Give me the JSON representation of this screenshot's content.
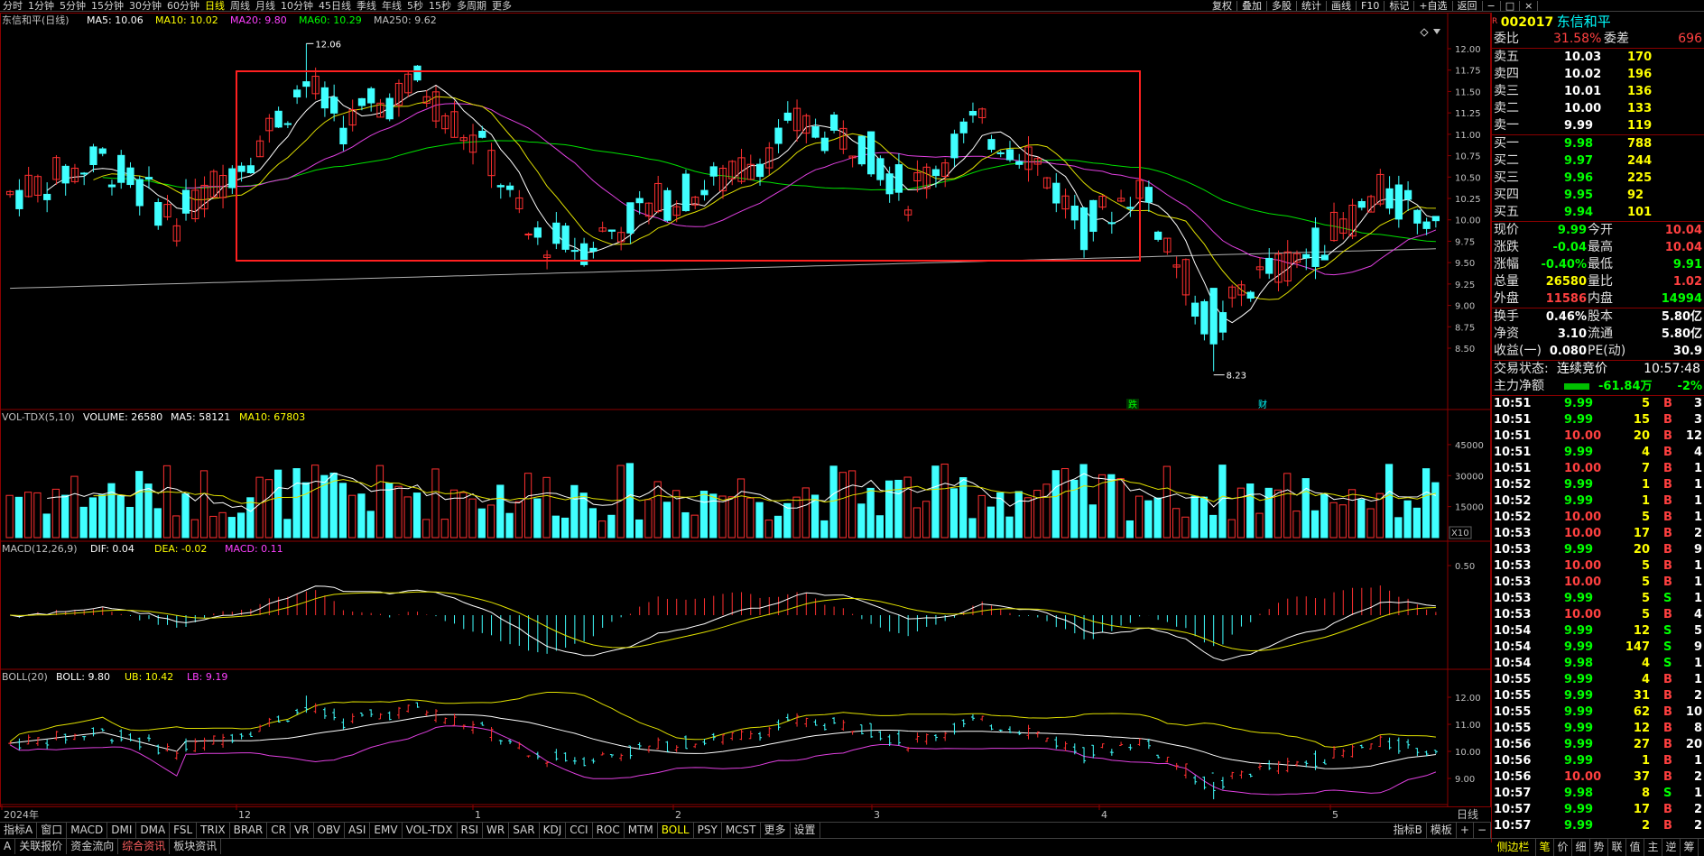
{
  "top": {
    "periods": [
      "分时",
      "1分钟",
      "5分钟",
      "15分钟",
      "30分钟",
      "60分钟",
      "日线",
      "周线",
      "月线",
      "10分钟",
      "45日线",
      "季线",
      "年线",
      "5秒",
      "15秒",
      "多周期",
      "更多"
    ],
    "active_period": "日线",
    "tools": [
      "复权",
      "叠加",
      "多股",
      "统计",
      "画线",
      "F10",
      "标记",
      "+自选",
      "返回"
    ],
    "win_controls": [
      "−",
      "□",
      "×"
    ]
  },
  "stock": {
    "code": "002017",
    "name": "东信和平",
    "badge": "R"
  },
  "main": {
    "title": "东信和平(日线)",
    "ma": [
      {
        "label": "MA5: 10.06",
        "color": "#ffffff"
      },
      {
        "label": "MA10: 10.02",
        "color": "#ffff00"
      },
      {
        "label": "MA20: 9.80",
        "color": "#ff40ff"
      },
      {
        "label": "MA60: 10.29",
        "color": "#00ff00"
      },
      {
        "label": "MA250: 9.62",
        "color": "#c0c0c0"
      }
    ],
    "high_mark": "12.06",
    "low_mark": "8.23",
    "event1": "跌",
    "event2": "财",
    "yticks": [
      "12.00",
      "11.75",
      "11.50",
      "11.25",
      "11.00",
      "10.75",
      "10.50",
      "10.25",
      "10.00",
      "9.75",
      "9.50",
      "9.25",
      "9.00",
      "8.75",
      "8.50"
    ]
  },
  "vol": {
    "title": "VOL-TDX(5,10)",
    "values": [
      {
        "label": "VOLUME: 26580",
        "color": "#ffffff"
      },
      {
        "label": "MA5: 58121",
        "color": "#ffffff"
      },
      {
        "label": "MA10: 67803",
        "color": "#ffff00"
      }
    ],
    "yticks": [
      "45000",
      "30000",
      "15000"
    ],
    "unit": "X10"
  },
  "macd": {
    "title": "MACD(12,26,9)",
    "values": [
      {
        "label": "DIF: 0.04",
        "color": "#ffffff"
      },
      {
        "label": "DEA: -0.02",
        "color": "#ffff00"
      },
      {
        "label": "MACD: 0.11",
        "color": "#ff40ff"
      }
    ],
    "yticks": [
      "0.50"
    ]
  },
  "boll": {
    "title": "BOLL(20)",
    "values": [
      {
        "label": "BOLL: 9.80",
        "color": "#ffffff"
      },
      {
        "label": "UB: 10.42",
        "color": "#ffff00"
      },
      {
        "label": "LB: 9.19",
        "color": "#ff40ff"
      }
    ],
    "yticks": [
      "12.00",
      "11.00",
      "10.00",
      "9.00"
    ]
  },
  "xaxis": {
    "labels": [
      "2024年",
      "12",
      "1",
      "2",
      "3",
      "4",
      "5"
    ],
    "period": "日线"
  },
  "bottom": {
    "tabs1": [
      "指标A",
      "窗口",
      "MACD",
      "DMI",
      "DMA",
      "FSL",
      "TRIX",
      "BRAR",
      "CR",
      "VR",
      "OBV",
      "ASI",
      "EMV",
      "VOL-TDX",
      "RSI",
      "WR",
      "SAR",
      "KDJ",
      "CCI",
      "ROC",
      "MTM",
      "BOLL",
      "PSY",
      "MCST",
      "更多",
      "设置"
    ],
    "active": "BOLL",
    "right1": [
      "指标B",
      "模板",
      "+",
      "−"
    ],
    "tabs2": [
      "关联报价",
      "资金流向",
      "综合资讯",
      "板块资讯"
    ],
    "left_partial": "A"
  },
  "panel": {
    "weibi": {
      "label": "委比",
      "value": "31.58%",
      "label2": "委差",
      "value2": "696"
    },
    "asks": [
      {
        "l": "卖五",
        "p": "10.03",
        "v": "170"
      },
      {
        "l": "卖四",
        "p": "10.02",
        "v": "196"
      },
      {
        "l": "卖三",
        "p": "10.01",
        "v": "136"
      },
      {
        "l": "卖二",
        "p": "10.00",
        "v": "133"
      },
      {
        "l": "卖一",
        "p": "9.99",
        "v": "119"
      }
    ],
    "bids": [
      {
        "l": "买一",
        "p": "9.98",
        "v": "788"
      },
      {
        "l": "买二",
        "p": "9.97",
        "v": "244"
      },
      {
        "l": "买三",
        "p": "9.96",
        "v": "225"
      },
      {
        "l": "买四",
        "p": "9.95",
        "v": "92"
      },
      {
        "l": "买五",
        "p": "9.94",
        "v": "101"
      }
    ],
    "quote": [
      {
        "l1": "现价",
        "v1": "9.99",
        "c1": "green",
        "l2": "今开",
        "v2": "10.04",
        "c2": "red"
      },
      {
        "l1": "涨跌",
        "v1": "-0.04",
        "c1": "green",
        "l2": "最高",
        "v2": "10.04",
        "c2": "red"
      },
      {
        "l1": "涨幅",
        "v1": "-0.40%",
        "c1": "green",
        "l2": "最低",
        "v2": "9.91",
        "c2": "green"
      },
      {
        "l1": "总量",
        "v1": "26580",
        "c1": "yel",
        "l2": "量比",
        "v2": "1.02",
        "c2": "red"
      },
      {
        "l1": "外盘",
        "v1": "11586",
        "c1": "red",
        "l2": "内盘",
        "v2": "14994",
        "c2": "green"
      },
      {
        "l1": "换手",
        "v1": "0.46%",
        "c1": "wht",
        "l2": "股本",
        "v2": "5.80亿",
        "c2": "wht"
      },
      {
        "l1": "净资",
        "v1": "3.10",
        "c1": "wht",
        "l2": "流通",
        "v2": "5.80亿",
        "c2": "wht"
      },
      {
        "l1": "收益(一)",
        "v1": "0.080",
        "c1": "wht",
        "l2": "PE(动)",
        "v2": "30.9",
        "c2": "wht"
      }
    ],
    "status": {
      "label": "交易状态:",
      "value": "连续竞价",
      "time": "10:57:48"
    },
    "flow": {
      "label": "主力净额",
      "value": "-61.84万",
      "pct": "-2%"
    },
    "ticks": [
      [
        "10:51",
        "9.99",
        "5",
        "B",
        "3"
      ],
      [
        "10:51",
        "9.99",
        "15",
        "B",
        "3"
      ],
      [
        "10:51",
        "10.00",
        "20",
        "B",
        "12"
      ],
      [
        "10:51",
        "9.99",
        "4",
        "B",
        "4"
      ],
      [
        "10:51",
        "10.00",
        "7",
        "B",
        "1"
      ],
      [
        "10:52",
        "9.99",
        "1",
        "B",
        "1"
      ],
      [
        "10:52",
        "9.99",
        "1",
        "B",
        "1"
      ],
      [
        "10:52",
        "10.00",
        "5",
        "B",
        "1"
      ],
      [
        "10:53",
        "10.00",
        "17",
        "B",
        "2"
      ],
      [
        "10:53",
        "9.99",
        "20",
        "B",
        "9"
      ],
      [
        "10:53",
        "10.00",
        "5",
        "B",
        "1"
      ],
      [
        "10:53",
        "10.00",
        "5",
        "B",
        "1"
      ],
      [
        "10:53",
        "9.99",
        "5",
        "S",
        "1"
      ],
      [
        "10:53",
        "10.00",
        "5",
        "B",
        "4"
      ],
      [
        "10:54",
        "9.99",
        "12",
        "S",
        "5"
      ],
      [
        "10:54",
        "9.99",
        "147",
        "S",
        "9"
      ],
      [
        "10:54",
        "9.98",
        "4",
        "S",
        "1"
      ],
      [
        "10:55",
        "9.99",
        "4",
        "B",
        "1"
      ],
      [
        "10:55",
        "9.99",
        "31",
        "B",
        "2"
      ],
      [
        "10:55",
        "9.99",
        "62",
        "B",
        "10"
      ],
      [
        "10:55",
        "9.99",
        "12",
        "B",
        "8"
      ],
      [
        "10:56",
        "9.99",
        "27",
        "B",
        "20"
      ],
      [
        "10:56",
        "9.99",
        "1",
        "B",
        "1"
      ],
      [
        "10:56",
        "10.00",
        "37",
        "B",
        "2"
      ],
      [
        "10:57",
        "9.98",
        "8",
        "S",
        "1"
      ],
      [
        "10:57",
        "9.99",
        "17",
        "B",
        "2"
      ],
      [
        "10:57",
        "9.99",
        "2",
        "B",
        "2"
      ]
    ],
    "tabs": [
      "笔",
      "价",
      "细",
      "势",
      "联",
      "值",
      "主",
      "逆",
      "筹"
    ],
    "sidebar_label": "侧边栏"
  },
  "colors": {
    "up": "#ff3030",
    "down": "#40ffff",
    "grid": "#8b0000",
    "box": "#ff2020"
  }
}
